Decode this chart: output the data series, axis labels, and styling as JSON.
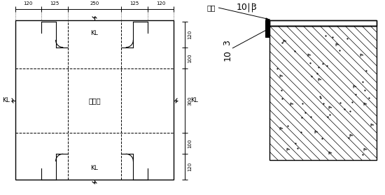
{
  "bg_color": "#ffffff",
  "line_color": "#000000",
  "fig_width": 5.5,
  "fig_height": 2.79,
  "dpi": 100,
  "dim_top": [
    "120",
    "125",
    "250",
    "125",
    "120"
  ],
  "dim_right": [
    "120",
    "100",
    "300",
    "100",
    "120"
  ],
  "kl_labels": [
    "KL",
    "KL",
    "KL",
    "KL"
  ],
  "center_label": "柱顶面",
  "elec_weld_label": "电焊",
  "label_10_top": "10",
  "label_3_top": "3",
  "label_3_left": "3",
  "label_10_left": "10"
}
